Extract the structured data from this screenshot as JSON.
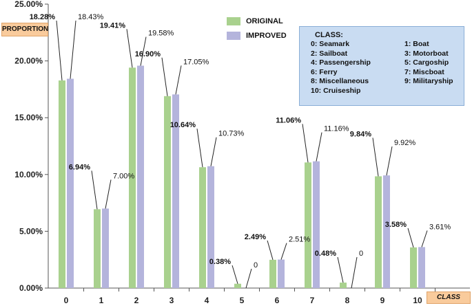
{
  "chart_data": {
    "type": "bar",
    "ylabel": "PROPORTION",
    "xlabel": "CLASS",
    "ylim": [
      0,
      25
    ],
    "y_ticks": [
      "0.00%",
      "5.00%",
      "10.00%",
      "15.00%",
      "20.00%",
      "25.00%"
    ],
    "categories": [
      "0",
      "1",
      "2",
      "3",
      "4",
      "5",
      "6",
      "7",
      "8",
      "9",
      "10"
    ],
    "series": [
      {
        "name": "ORIGINAL",
        "color": "#a9d18e",
        "values": [
          18.28,
          6.94,
          19.41,
          16.9,
          10.64,
          0.38,
          2.49,
          11.06,
          0.48,
          9.84,
          3.58
        ],
        "labels": [
          "18.28%",
          "6.94%",
          "19.41%",
          "16.90%",
          "10.64%",
          "0.38%",
          "2.49%",
          "11.06%",
          "0.48%",
          "9.84%",
          "3.58%"
        ]
      },
      {
        "name": "IMPROVED",
        "color": "#b4b4dc",
        "values": [
          18.43,
          7.0,
          19.58,
          17.05,
          10.73,
          0,
          2.51,
          11.16,
          0,
          9.92,
          3.61
        ],
        "labels": [
          "18.43%",
          "7.00%",
          "19.58%",
          "17.05%",
          "10.73%",
          "0",
          "2.51%",
          "11.16%",
          "0",
          "9.92%",
          "3.61%"
        ]
      }
    ],
    "class_legend": {
      "title": "CLASS:",
      "items": [
        "0: Seamark",
        "1: Boat",
        "2: Sailboat",
        "3: Motorboat",
        "4: Passengership",
        "5: Cargoship",
        "6: Ferry",
        "7: Miscboat",
        "8: Miscellaneous",
        "9: Militaryship",
        "10: Cruiseship"
      ]
    }
  }
}
